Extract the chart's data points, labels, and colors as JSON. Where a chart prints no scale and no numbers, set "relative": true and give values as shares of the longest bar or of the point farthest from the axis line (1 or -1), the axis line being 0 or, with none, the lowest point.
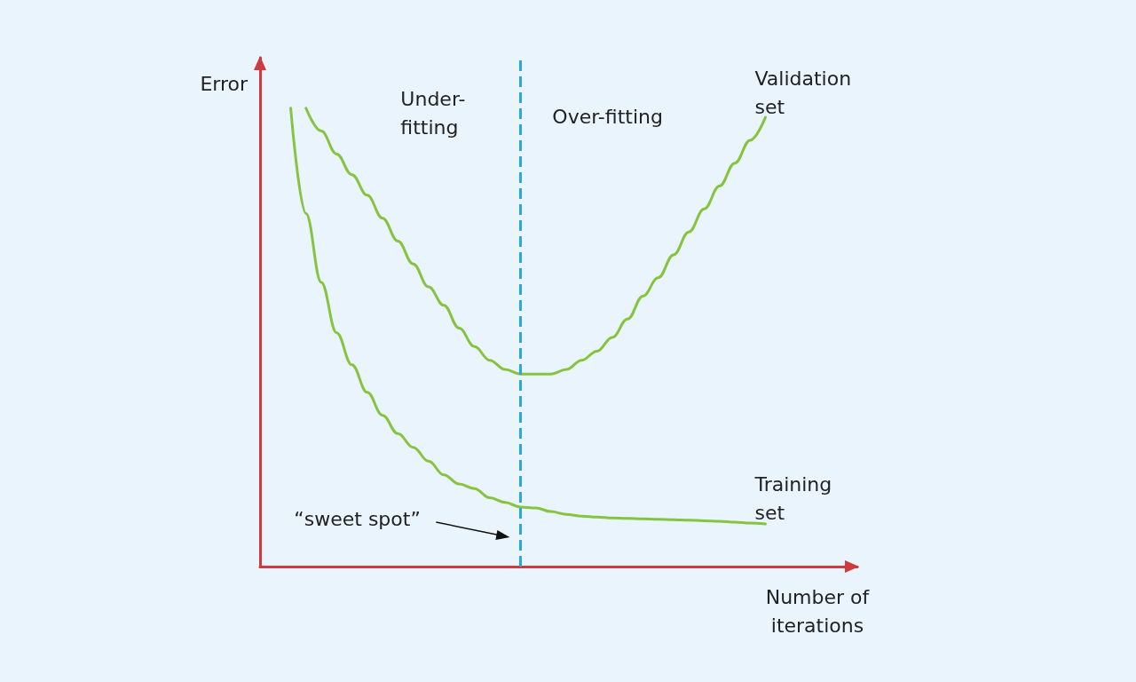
{
  "chart_data": {
    "type": "line",
    "relative": true,
    "xlabel": "Number of iterations",
    "ylabel": "Error",
    "categories": [
      null,
      null,
      null,
      null,
      null,
      null,
      null,
      null,
      null,
      null,
      null,
      null,
      null,
      null,
      null,
      null,
      null,
      null,
      null,
      null,
      null,
      null,
      null,
      null,
      null,
      null,
      null,
      null,
      null,
      null,
      null,
      null,
      null,
      null,
      null,
      null,
      null,
      null,
      null,
      null
    ],
    "series": [
      {
        "name": "Validation set",
        "color": "#86c440",
        "values": [
          null,
          null,
          null,
          1.0,
          0.95,
          0.9,
          0.855,
          0.81,
          0.76,
          0.71,
          0.66,
          0.61,
          0.57,
          0.52,
          0.48,
          0.45,
          0.43,
          0.42,
          0.42,
          0.42,
          0.43,
          0.45,
          0.47,
          0.5,
          0.54,
          0.59,
          0.63,
          0.68,
          0.73,
          0.78,
          0.83,
          0.88,
          0.93,
          0.98,
          null,
          null,
          null,
          null,
          null,
          null
        ]
      },
      {
        "name": "Training set",
        "color": "#86c440",
        "values": [
          null,
          null,
          1.0,
          0.77,
          0.62,
          0.51,
          0.44,
          0.38,
          0.33,
          0.29,
          0.26,
          0.23,
          0.2,
          0.18,
          0.17,
          0.15,
          0.14,
          0.13,
          0.128,
          0.12,
          0.114,
          0.11,
          0.108,
          0.106,
          0.105,
          0.104,
          0.103,
          0.102,
          0.101,
          0.1,
          0.099,
          0.097,
          0.095,
          0.093,
          null,
          null,
          null,
          null,
          null,
          null
        ]
      }
    ],
    "annotations": [
      "Under-\nfitting",
      "Over-fitting",
      "“sweet spot”"
    ],
    "marker": "none",
    "line_style": "solid",
    "legend": false,
    "grid": false
  }
}
